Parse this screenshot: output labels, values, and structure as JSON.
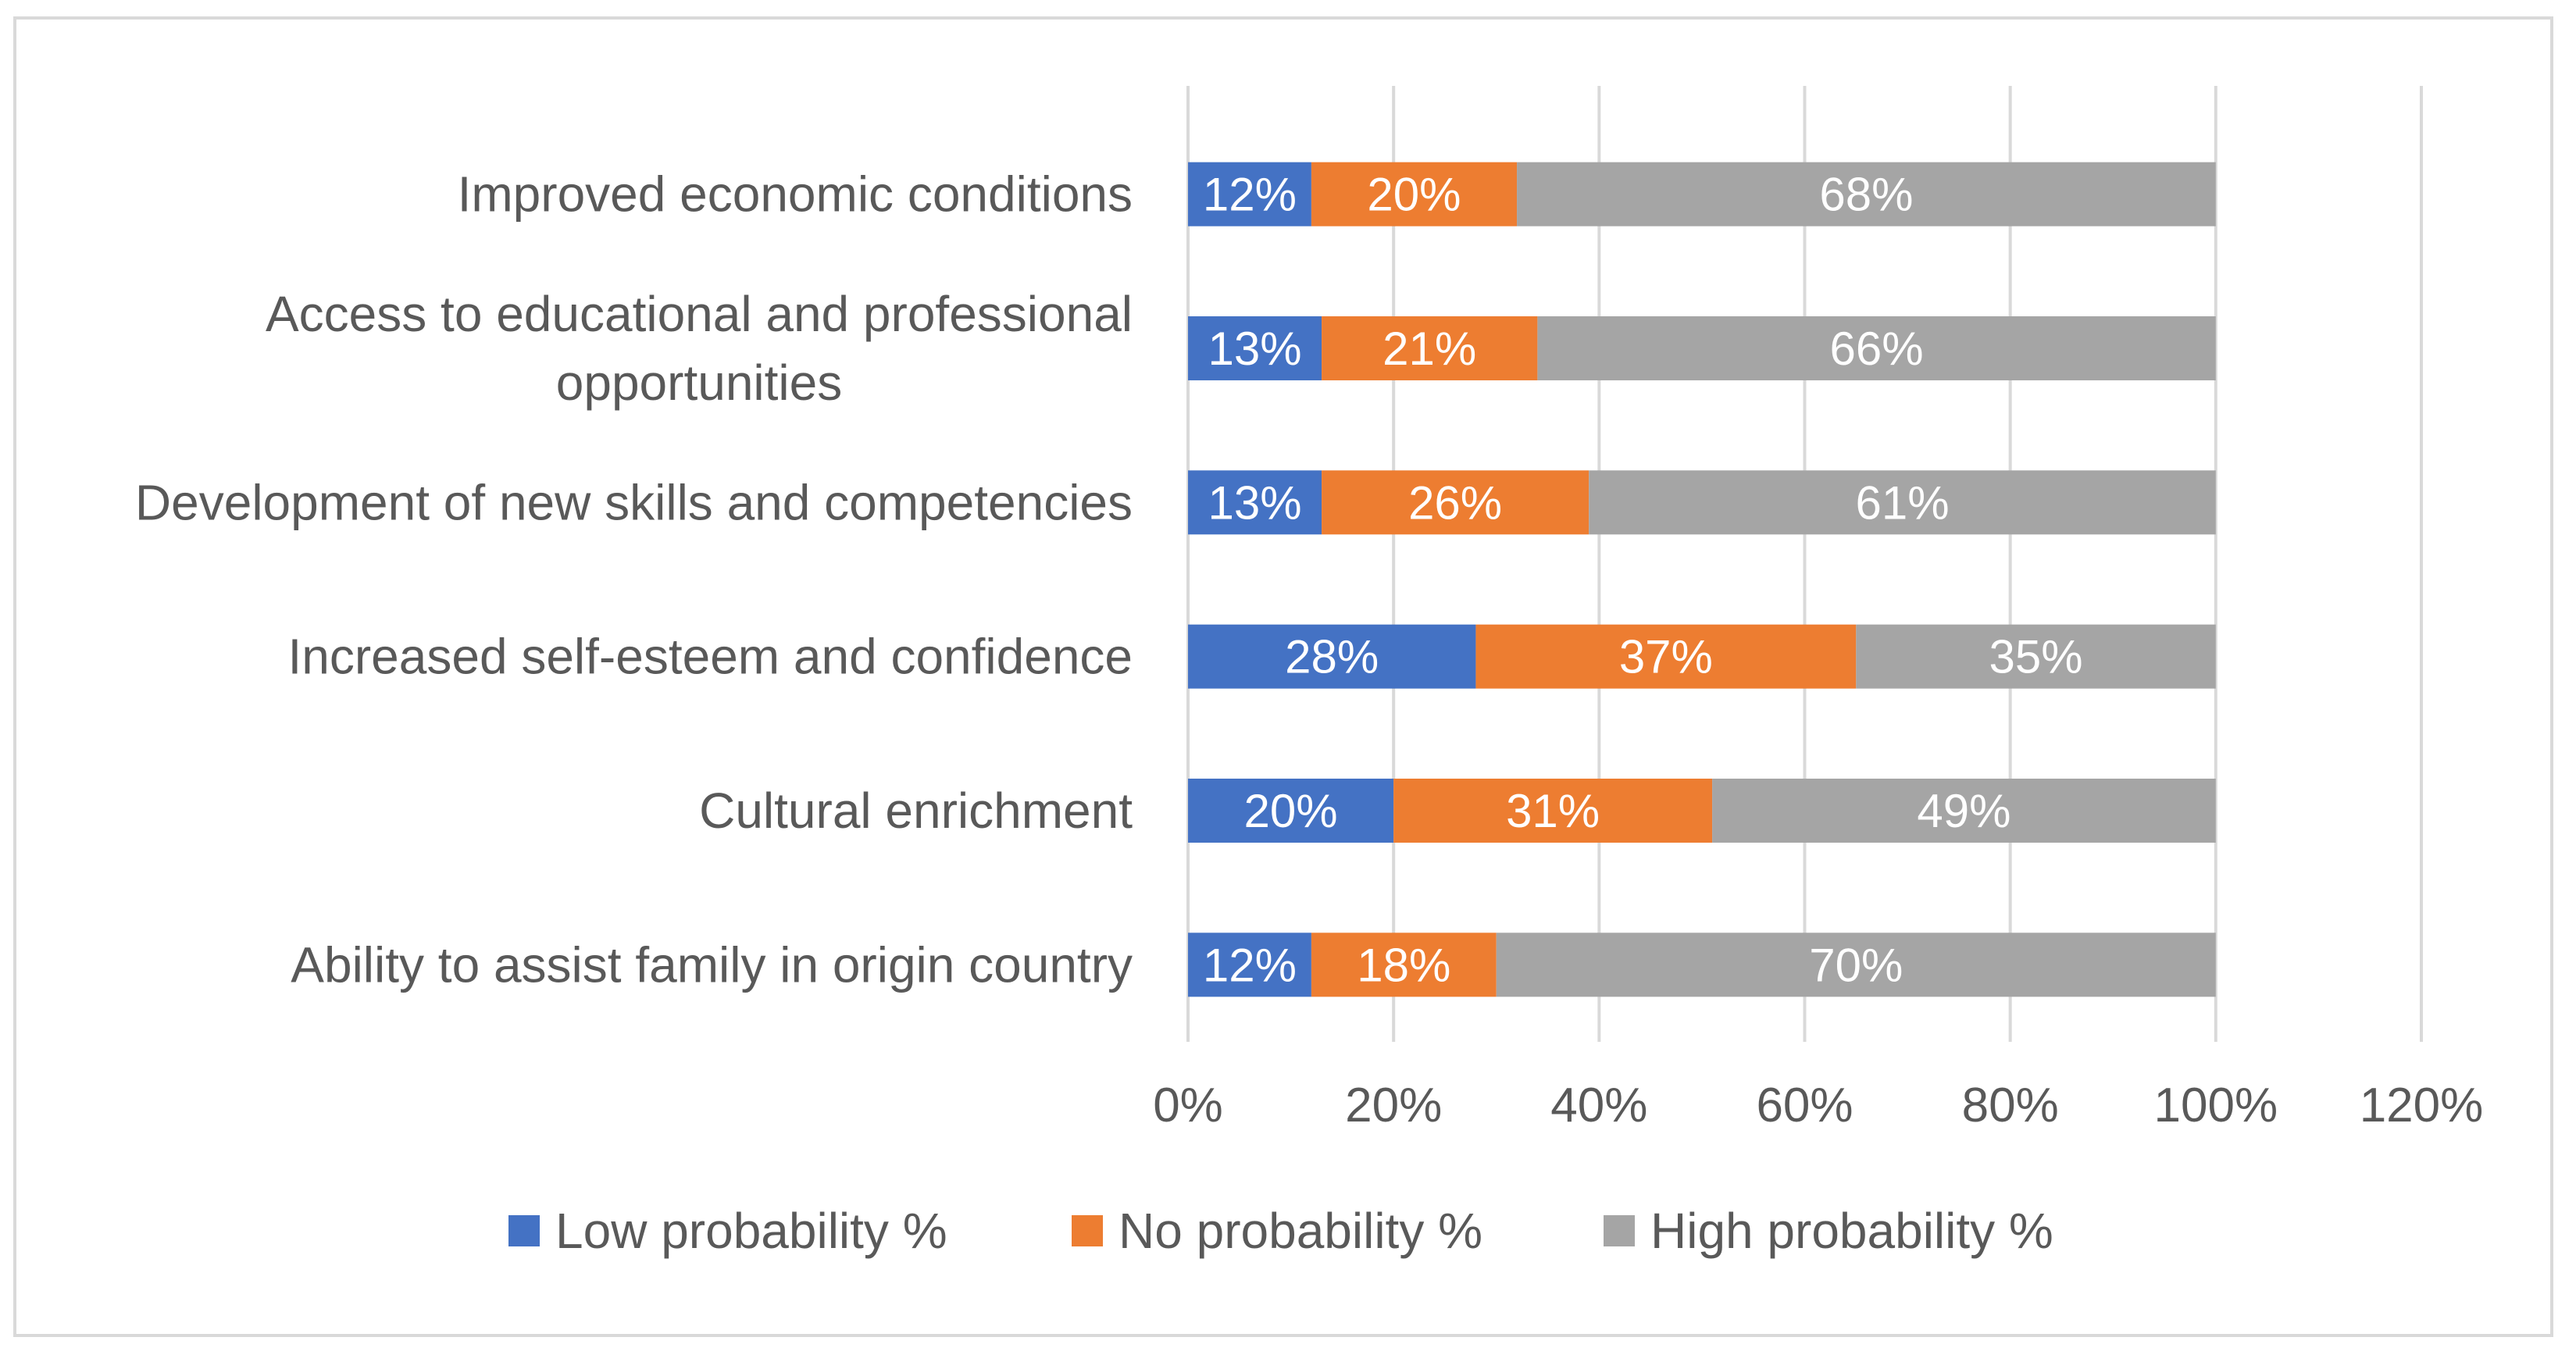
{
  "chart_data": {
    "type": "bar",
    "orientation": "horizontal",
    "stacked": true,
    "categories": [
      "Improved economic conditions",
      "Access to educational and professional opportunities",
      "Development of new skills and competencies",
      "Increased self-esteem and confidence",
      "Cultural enrichment",
      "Ability to assist family in origin country"
    ],
    "category_lines": [
      [
        "Improved economic conditions"
      ],
      [
        "Access to educational and professional",
        "opportunities"
      ],
      [
        "Development of new skills and competencies"
      ],
      [
        "Increased self-esteem and confidence"
      ],
      [
        "Cultural enrichment"
      ],
      [
        "Ability to assist family in origin country"
      ]
    ],
    "series": [
      {
        "name": "Low probability %",
        "color": "#4472c4",
        "values": [
          12,
          13,
          13,
          28,
          20,
          12
        ],
        "labels": [
          "12%",
          "13%",
          "13%",
          "28%",
          "20%",
          "12%"
        ]
      },
      {
        "name": "No probability %",
        "color": "#ed7d31",
        "values": [
          20,
          21,
          26,
          37,
          31,
          18
        ],
        "labels": [
          "20%",
          "21%",
          "26%",
          "37%",
          "31%",
          "18%"
        ]
      },
      {
        "name": "High probability %",
        "color": "#a5a5a5",
        "values": [
          68,
          66,
          61,
          35,
          49,
          70
        ],
        "labels": [
          "68%",
          "66%",
          "61%",
          "35%",
          "49%",
          "70%"
        ]
      }
    ],
    "x_ticks": [
      0,
      20,
      40,
      60,
      80,
      100,
      120
    ],
    "x_tick_labels": [
      "0%",
      "20%",
      "40%",
      "60%",
      "80%",
      "100%",
      "120%"
    ],
    "xlim": [
      0,
      120
    ],
    "grid": true,
    "legend_position": "bottom",
    "title": "",
    "xlabel": "",
    "ylabel": "",
    "gridline_color": "#d9d9d9"
  }
}
